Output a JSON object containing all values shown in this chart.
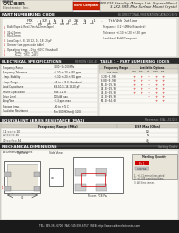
{
  "title_left1": "CALIBER",
  "title_left2": "Electronics Inc.",
  "title_center_label": "RoHS Compliant",
  "title_right_line1": "FMX-325 Standby (Always List, Square Wave)",
  "title_right_line2": "3.2X2.5ME-Mhz Surface Mount Crystal",
  "sec1_header": "PART NUMBERING CODE",
  "sec1_right": "BI-DIRECTIONAL/ORIENTATION CATALOG BITS",
  "sec2_header": "ELECTRICAL SPECIFICATIONS",
  "sec2_right": "REFLOW (250-4)",
  "table1_header": "TABLE 1 - PART NUMBERING CODES",
  "sec3_header": "EQUIVALENT SERIES RESISTANCE (MAX)",
  "sec3_right": "Reference: EIA-1-51(25)",
  "sec4_header": "MECHANICAL DIMENSIONS",
  "sec4_right": "Marking Codes",
  "footer_tel": "TEL: 949-362-6700   FAX: 949-596-6757   WEB: http://www.caliberelectronics.com",
  "bg_color": "#ffffff",
  "section_bg": "#2a2a2a",
  "section_fg": "#ffffff",
  "rohs_bg": "#cc2200",
  "rohs_fg": "#ffffff",
  "body_bg": "#f0ece0",
  "inner_bg": "#faf8f2",
  "grid_color": "#cccccc",
  "red_text": "#cc0000",
  "footer_bg": "#1a1a1a",
  "footer_fg": "#dddddd",
  "header_bg": "#e8e4d8",
  "table_hdr_bg": "#d0ccc0",
  "table_shdr_bg": "#e0dcd0"
}
